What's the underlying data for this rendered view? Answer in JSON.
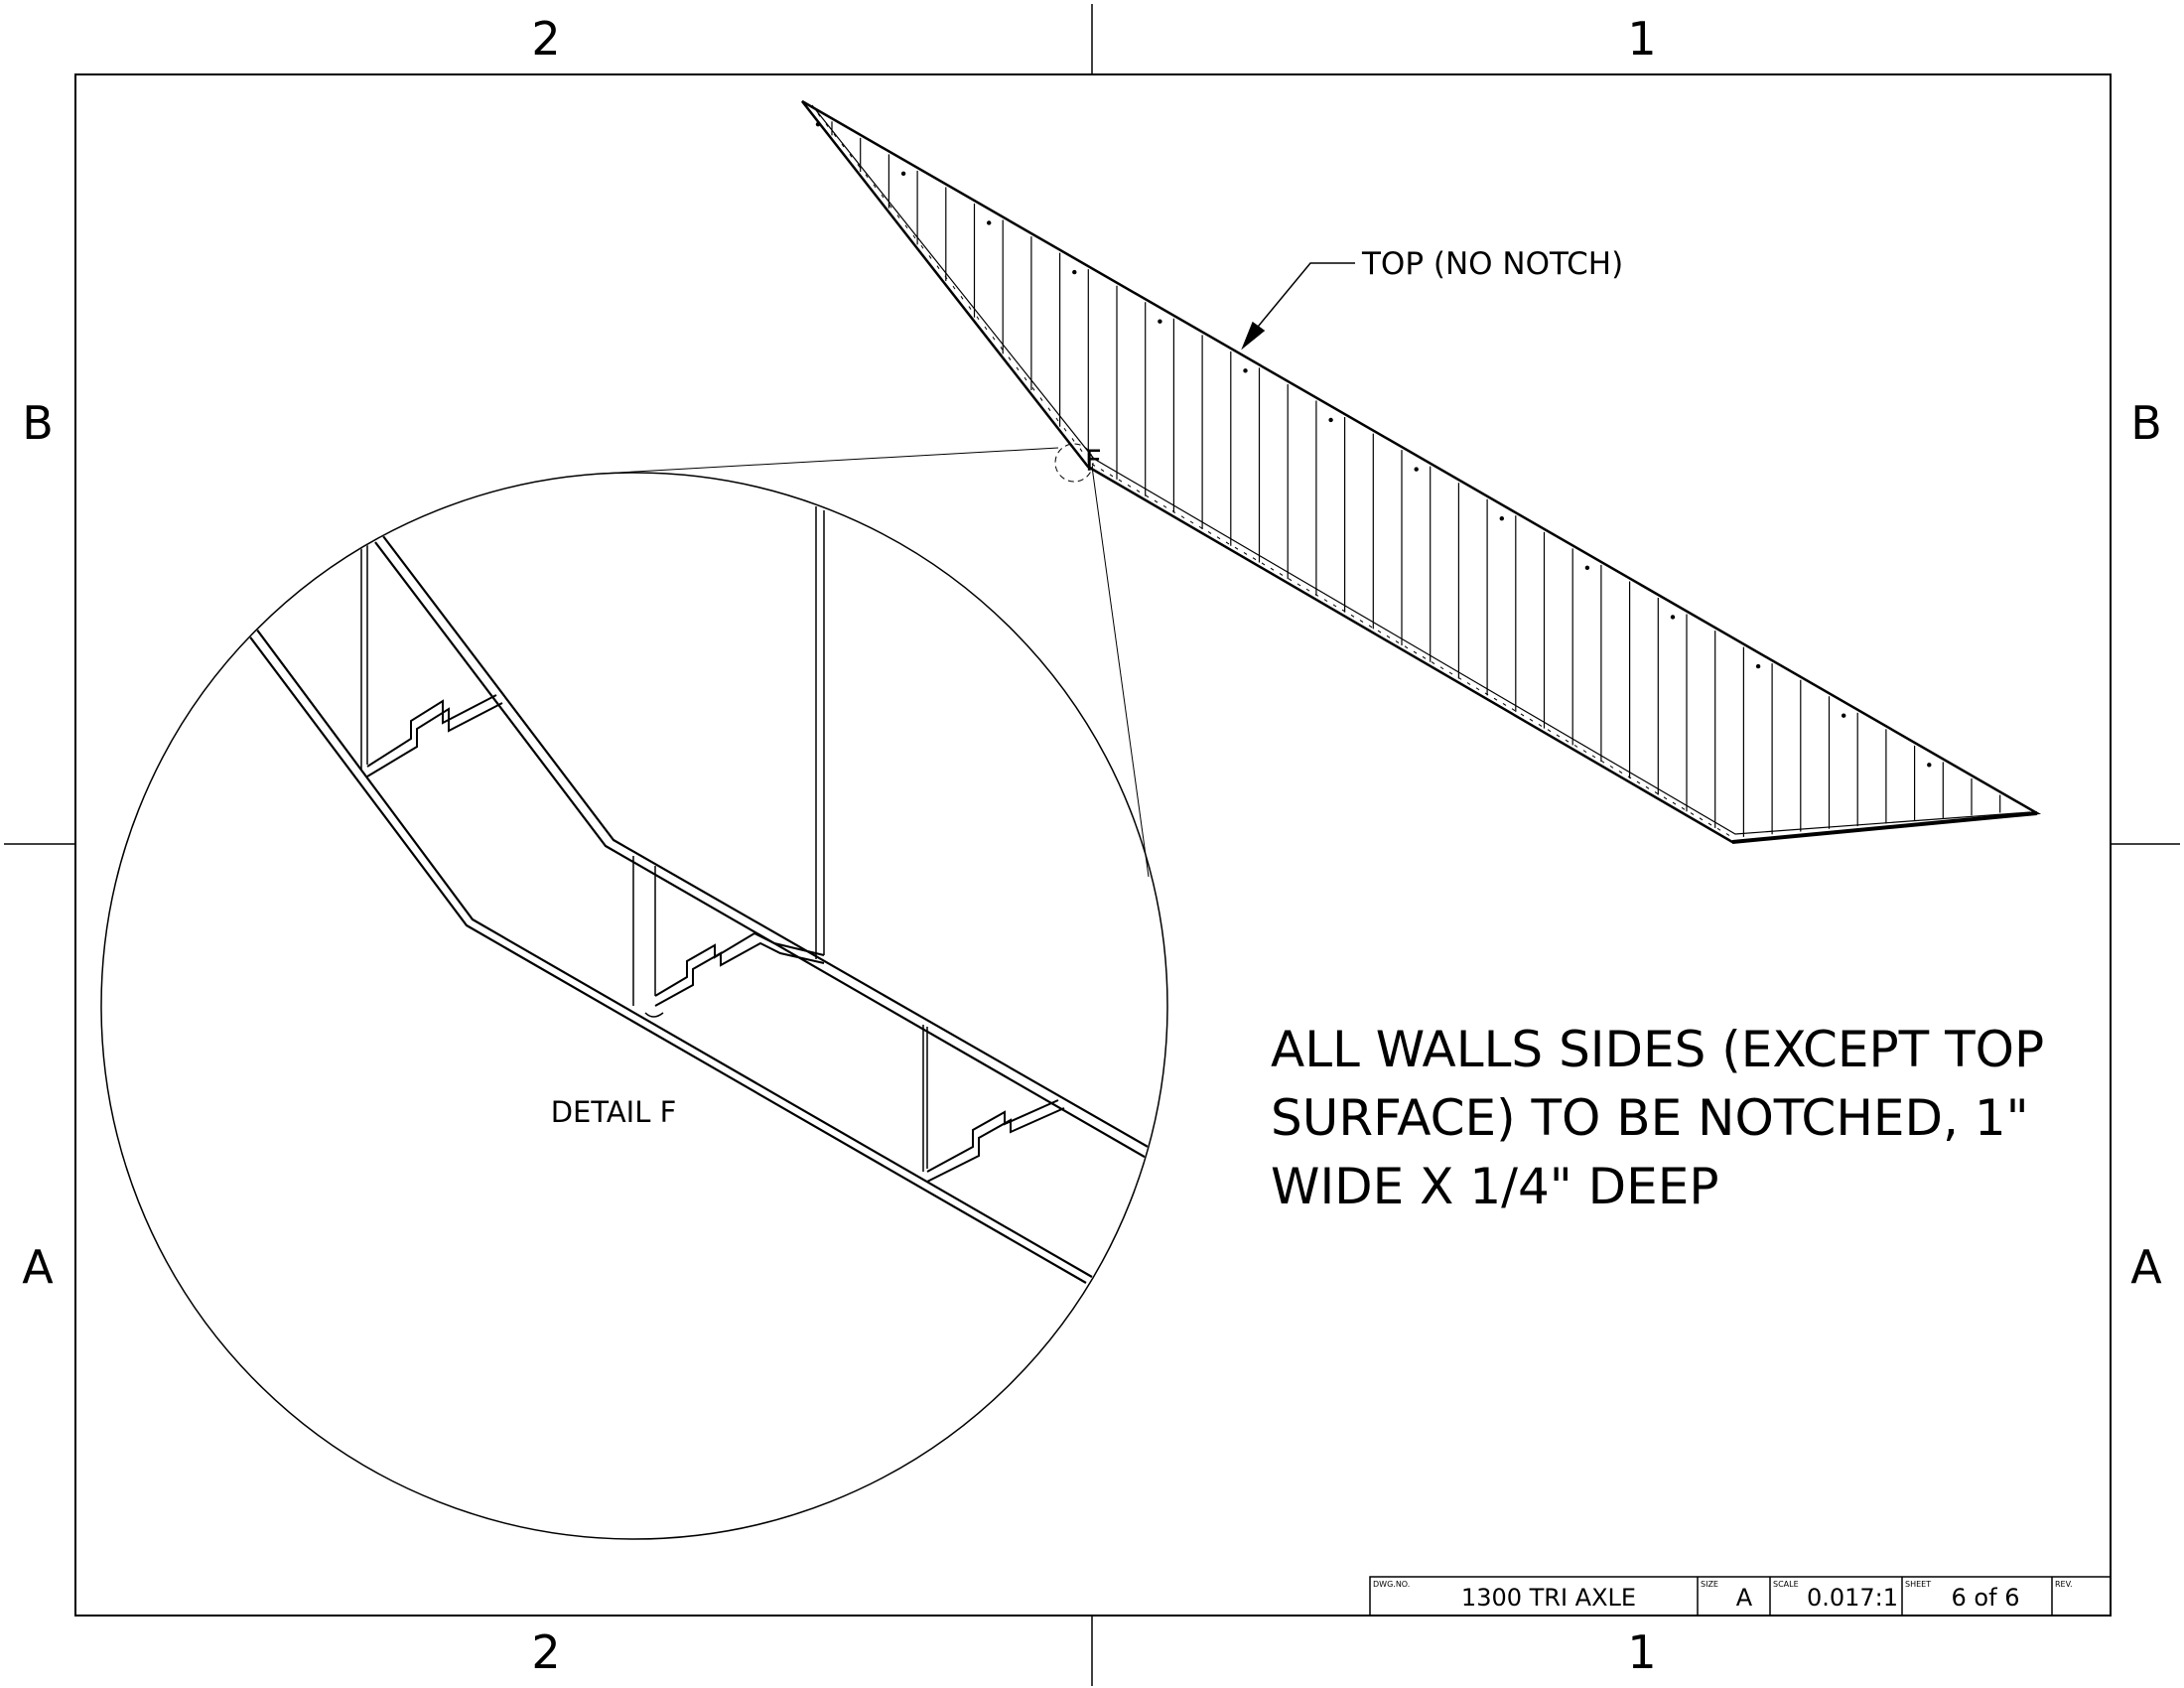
{
  "zones": {
    "cols_top": [
      "2",
      "1"
    ],
    "cols_bottom": [
      "2",
      "1"
    ],
    "rows_left": [
      "B",
      "A"
    ],
    "rows_right": [
      "B",
      "A"
    ]
  },
  "callout": {
    "top_label": "TOP (NO NOTCH)",
    "detail_tag": "F"
  },
  "detail_view": {
    "label": "DETAIL F"
  },
  "note": {
    "lines": [
      "ALL WALLS SIDES (EXCEPT TOP",
      "SURFACE) TO BE NOTCHED, 1\"",
      "WIDE X 1/4\" DEEP"
    ]
  },
  "title_block": {
    "dwg_no_label": "DWG.NO.",
    "dwg_no": "1300 TRI AXLE",
    "size_label": "SIZE",
    "size": "A",
    "scale_label": "SCALE",
    "scale": "0.017:1",
    "sheet_label": "SHEET",
    "sheet": "6 of 6",
    "rev_label": "REV.",
    "rev": ""
  },
  "colors": {
    "ink": "#000000",
    "paper": "#ffffff"
  }
}
